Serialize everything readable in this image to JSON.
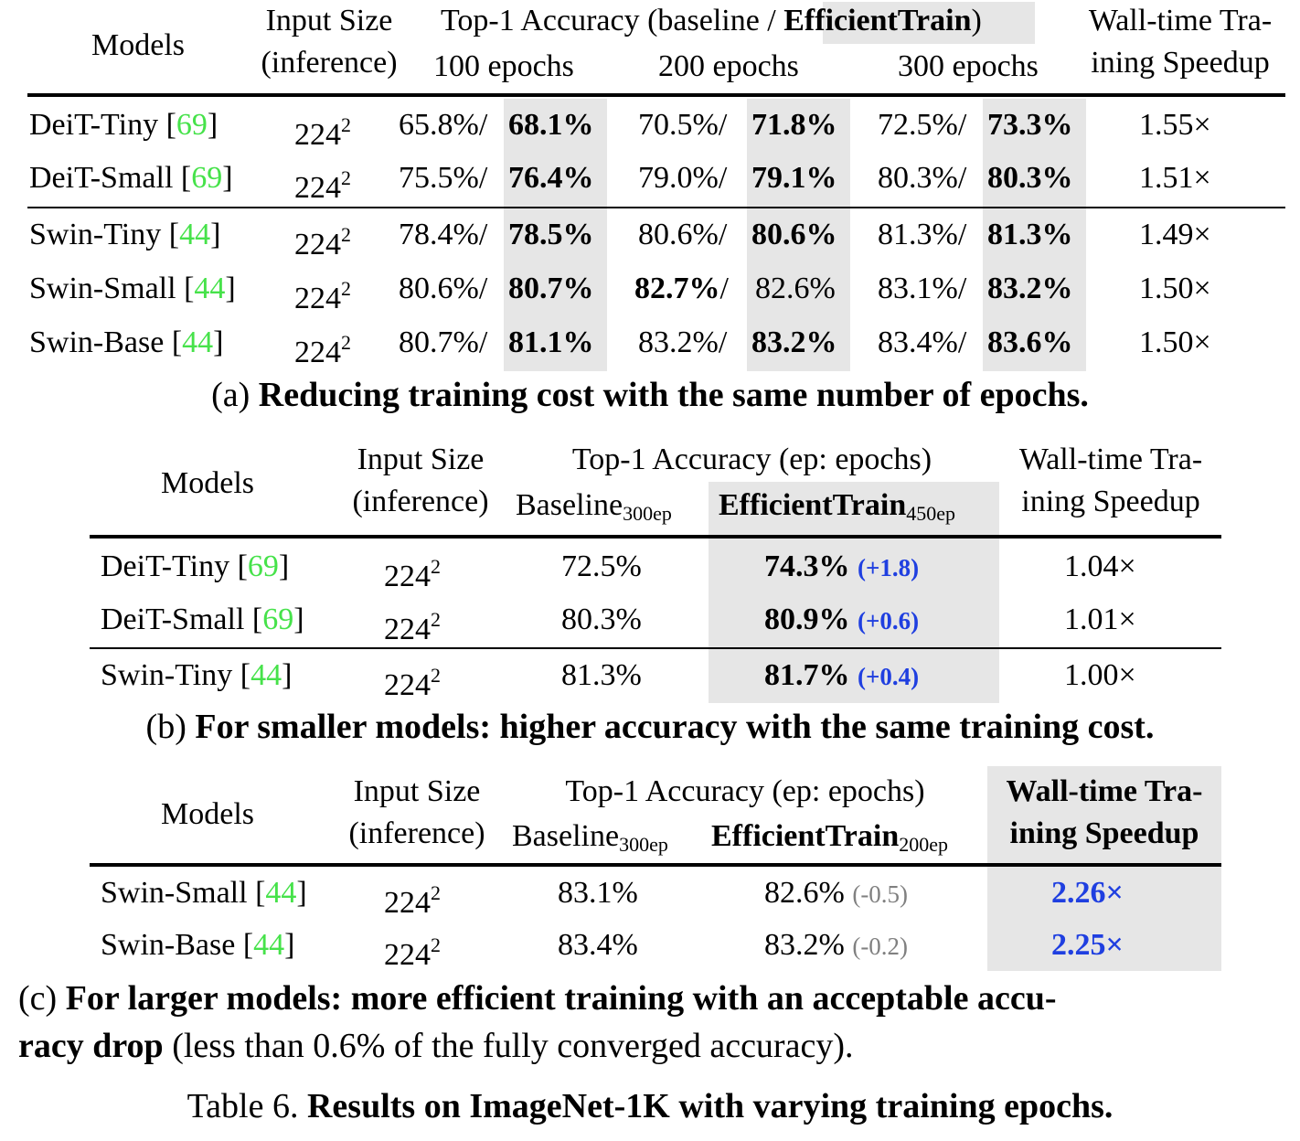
{
  "table_a": {
    "headers": {
      "models": "Models",
      "input_size_l1": "Input Size",
      "input_size_l2": "(inference)",
      "acc_prefix": "Top-1 Accuracy (baseline / ",
      "acc_method": "EfficientTrain",
      "acc_suffix": ")",
      "ep100": "100 epochs",
      "ep200": "200 epochs",
      "ep300": "300 epochs",
      "speedup_l1": "Wall-time Tra-",
      "speedup_l2": "ining Speedup"
    },
    "rows": [
      {
        "model": "DeiT-Tiny [",
        "ref": "69",
        "close": "]",
        "size": "224",
        "exp": "2",
        "b100": "65.8%/",
        "e100": "68.1%",
        "b200": "70.5%/",
        "e200": "71.8%",
        "b300": "72.5%/",
        "e300": "73.3%",
        "speedup": "1.55×"
      },
      {
        "model": "DeiT-Small [",
        "ref": "69",
        "close": "]",
        "size": "224",
        "exp": "2",
        "b100": "75.5%/",
        "e100": "76.4%",
        "b200": "79.0%/",
        "e200": "79.1%",
        "b300": "80.3%/",
        "e300": "80.3%",
        "speedup": "1.51×"
      },
      {
        "model": "Swin-Tiny [",
        "ref": "44",
        "close": "]",
        "size": "224",
        "exp": "2",
        "b100": "78.4%/",
        "e100": "78.5%",
        "b200": "80.6%/",
        "e200": "80.6%",
        "b300": "81.3%/",
        "e300": "81.3%",
        "speedup": "1.49×"
      },
      {
        "model": "Swin-Small [",
        "ref": "44",
        "close": "]",
        "size": "224",
        "exp": "2",
        "b100": "80.6%/",
        "e100": "80.7%",
        "b200": "82.7%",
        "b200_sep": "/",
        "e200": "82.6%",
        "b300": "83.1%/",
        "e300": "83.2%",
        "speedup": "1.50×"
      },
      {
        "model": "Swin-Base [",
        "ref": "44",
        "close": "]",
        "size": "224",
        "exp": "2",
        "b100": "80.7%/",
        "e100": "81.1%",
        "b200": "83.2%/",
        "e200": "83.2%",
        "b300": "83.4%/",
        "e300": "83.6%",
        "speedup": "1.50×"
      }
    ],
    "caption_prefix": "(a) ",
    "caption_bold": "Reducing training cost with the same number of epochs."
  },
  "table_b": {
    "headers": {
      "models": "Models",
      "input_size_l1": "Input Size",
      "input_size_l2": "(inference)",
      "acc": "Top-1 Accuracy (ep: epochs)",
      "baseline": "Baseline",
      "baseline_sub": "300ep",
      "method": "EfficientTrain",
      "method_sub": "450ep",
      "speedup_l1": "Wall-time Tra-",
      "speedup_l2": "ining Speedup"
    },
    "rows": [
      {
        "model": "DeiT-Tiny [",
        "ref": "69",
        "close": "]",
        "size": "224",
        "exp": "2",
        "baseline": "72.5%",
        "method": "74.3%",
        "delta": "(+1.8)",
        "speedup": "1.04×"
      },
      {
        "model": "DeiT-Small [",
        "ref": "69",
        "close": "]",
        "size": "224",
        "exp": "2",
        "baseline": "80.3%",
        "method": "80.9%",
        "delta": "(+0.6)",
        "speedup": "1.01×"
      },
      {
        "model": "Swin-Tiny [",
        "ref": "44",
        "close": "]",
        "size": "224",
        "exp": "2",
        "baseline": "81.3%",
        "method": "81.7%",
        "delta": "(+0.4)",
        "speedup": "1.00×"
      }
    ],
    "caption_prefix": "(b) ",
    "caption_bold": "For smaller models: higher accuracy with the same training cost."
  },
  "table_c": {
    "headers": {
      "models": "Models",
      "input_size_l1": "Input Size",
      "input_size_l2": "(inference)",
      "acc": "Top-1 Accuracy (ep: epochs)",
      "baseline": "Baseline",
      "baseline_sub": "300ep",
      "method": "EfficientTrain",
      "method_sub": "200ep",
      "speedup_l1": "Wall-time Tra-",
      "speedup_l2": "ining Speedup"
    },
    "rows": [
      {
        "model": "Swin-Small [",
        "ref": "44",
        "close": "]",
        "size": "224",
        "exp": "2",
        "baseline": "83.1%",
        "method": "82.6%",
        "delta": "(-0.5)",
        "speedup": "2.26×"
      },
      {
        "model": "Swin-Base [",
        "ref": "44",
        "close": "]",
        "size": "224",
        "exp": "2",
        "baseline": "83.4%",
        "method": "83.2%",
        "delta": "(-0.2)",
        "speedup": "2.25×"
      }
    ],
    "caption_prefix": "(c) ",
    "caption_bold_l1": "For larger models: more efficient training with an acceptable accu-",
    "caption_bold_l2": "racy drop",
    "caption_rest": " (less than 0.6% of the fully converged accuracy)."
  },
  "main_caption": {
    "prefix": "Table 6. ",
    "bold": "Results on ImageNet-1K with varying training epochs."
  }
}
